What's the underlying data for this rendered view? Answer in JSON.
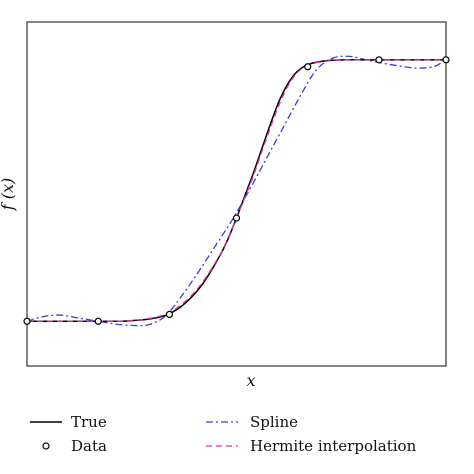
{
  "chart_data": {
    "type": "line",
    "xlabel": "x",
    "ylabel": "f (x)",
    "xlim": [
      0,
      1
    ],
    "ylim": [
      0,
      1
    ],
    "ticks_visible": false,
    "grid": false,
    "legend_position": "bottom",
    "series": [
      {
        "name": "True",
        "style": "solid",
        "color": "#000000",
        "x": [
          0.0,
          0.06,
          0.12,
          0.18,
          0.24,
          0.3,
          0.34,
          0.38,
          0.42,
          0.46,
          0.48,
          0.5,
          0.52,
          0.54,
          0.56,
          0.58,
          0.6,
          0.62,
          0.64,
          0.66,
          0.68,
          0.72,
          0.76,
          0.82,
          0.88,
          0.94,
          1.0
        ],
        "y": [
          0.13,
          0.13,
          0.13,
          0.13,
          0.131,
          0.138,
          0.152,
          0.185,
          0.24,
          0.32,
          0.37,
          0.43,
          0.495,
          0.56,
          0.63,
          0.7,
          0.765,
          0.815,
          0.85,
          0.87,
          0.88,
          0.888,
          0.89,
          0.89,
          0.89,
          0.89,
          0.89
        ]
      },
      {
        "name": "Spline",
        "style": "dashdot",
        "color": "#3a3fd1",
        "x": [
          0.0,
          0.04,
          0.08,
          0.12,
          0.17,
          0.21,
          0.25,
          0.29,
          0.33,
          0.37,
          0.41,
          0.45,
          0.49,
          0.53,
          0.57,
          0.61,
          0.65,
          0.69,
          0.73,
          0.77,
          0.81,
          0.85,
          0.89,
          0.93,
          0.97,
          1.0
        ],
        "y": [
          0.13,
          0.144,
          0.148,
          0.14,
          0.13,
          0.122,
          0.118,
          0.12,
          0.145,
          0.205,
          0.275,
          0.35,
          0.425,
          0.51,
          0.6,
          0.69,
          0.78,
          0.86,
          0.895,
          0.9,
          0.89,
          0.88,
          0.872,
          0.866,
          0.87,
          0.89
        ]
      },
      {
        "name": "Hermite interpolation",
        "style": "dashed",
        "color": "#e0309a",
        "x": [
          0.0,
          0.06,
          0.12,
          0.18,
          0.24,
          0.3,
          0.34,
          0.38,
          0.42,
          0.46,
          0.48,
          0.5,
          0.52,
          0.54,
          0.56,
          0.58,
          0.6,
          0.62,
          0.64,
          0.66,
          0.68,
          0.72,
          0.76,
          0.82,
          0.88,
          0.94,
          1.0
        ],
        "y": [
          0.13,
          0.13,
          0.13,
          0.13,
          0.131,
          0.14,
          0.156,
          0.19,
          0.245,
          0.322,
          0.368,
          0.43,
          0.49,
          0.552,
          0.622,
          0.69,
          0.755,
          0.808,
          0.846,
          0.868,
          0.879,
          0.887,
          0.89,
          0.89,
          0.89,
          0.89,
          0.89
        ]
      },
      {
        "name": "Data",
        "style": "markers",
        "color": "#000000",
        "x": [
          0.0,
          0.17,
          0.34,
          0.5,
          0.67,
          0.84,
          1.0
        ],
        "y": [
          0.13,
          0.13,
          0.15,
          0.43,
          0.87,
          0.89,
          0.89
        ]
      }
    ]
  }
}
